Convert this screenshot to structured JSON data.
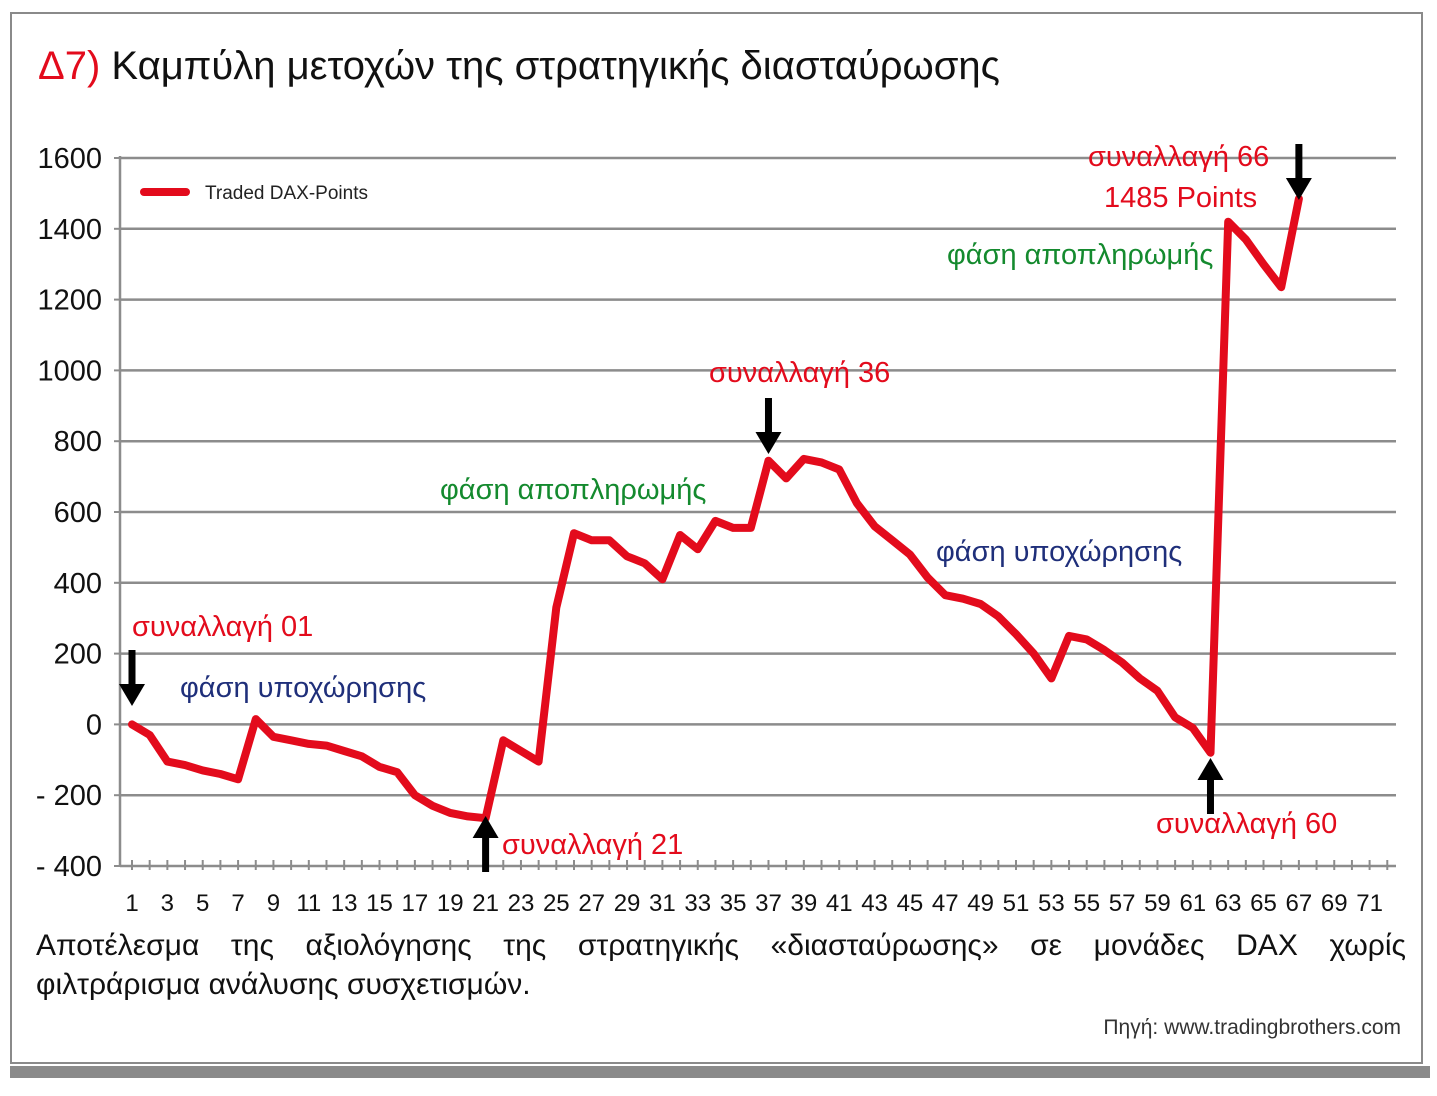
{
  "title": {
    "number": "Δ7)",
    "text": "Καμπύλη μετοχών της στρατηγικής διασταύρωσης"
  },
  "colors": {
    "series": "#e30b1c",
    "green": "#148a2e",
    "blue": "#1f2f7a",
    "grid": "#8c8c8c",
    "frame": "#8a8a8a"
  },
  "chart_data": {
    "type": "line",
    "grid": true,
    "legend_position": "top-left",
    "ylim": [
      -400,
      1600
    ],
    "yticks": [
      1600,
      1400,
      1200,
      1000,
      800,
      600,
      400,
      200,
      0,
      -200,
      -400
    ],
    "ytick_labels": [
      "1600",
      "1400",
      "1200",
      "1000",
      "800",
      "600",
      "400",
      "200",
      "0",
      "- 200",
      "- 400"
    ],
    "xlim": [
      1,
      72
    ],
    "xticks": [
      1,
      3,
      5,
      7,
      9,
      11,
      13,
      15,
      17,
      19,
      21,
      23,
      25,
      27,
      29,
      31,
      33,
      35,
      37,
      39,
      41,
      43,
      45,
      47,
      49,
      51,
      53,
      55,
      57,
      59,
      61,
      63,
      65,
      67,
      69,
      71
    ],
    "series": [
      {
        "name": "Traded DAX-Points",
        "x": [
          1,
          2,
          3,
          4,
          5,
          6,
          7,
          8,
          9,
          10,
          11,
          12,
          13,
          14,
          15,
          16,
          17,
          18,
          19,
          20,
          21,
          22,
          23,
          24,
          25,
          26,
          27,
          28,
          29,
          30,
          31,
          32,
          33,
          34,
          35,
          36,
          37,
          38,
          39,
          40,
          41,
          42,
          43,
          44,
          45,
          46,
          47,
          48,
          49,
          50,
          51,
          52,
          53,
          54,
          55,
          56,
          57,
          58,
          59,
          60,
          61,
          62,
          63,
          64,
          65,
          66,
          67
        ],
        "y": [
          0,
          -30,
          -105,
          -115,
          -130,
          -140,
          -155,
          15,
          -35,
          -45,
          -55,
          -60,
          -75,
          -90,
          -120,
          -135,
          -200,
          -230,
          -250,
          -260,
          -265,
          -45,
          -75,
          -105,
          330,
          540,
          520,
          520,
          475,
          455,
          410,
          535,
          495,
          575,
          555,
          555,
          745,
          695,
          750,
          740,
          720,
          625,
          560,
          520,
          480,
          415,
          365,
          355,
          340,
          305,
          255,
          200,
          130,
          250,
          240,
          210,
          175,
          130,
          95,
          20,
          -10,
          -80,
          1420,
          1370,
          1300,
          1235,
          1485
        ]
      }
    ],
    "annotations": [
      {
        "text": "συναλλαγή 01",
        "color": "red"
      },
      {
        "text": "φάση υποχώρησης",
        "color": "blue"
      },
      {
        "text": "συναλλαγή 21",
        "color": "red"
      },
      {
        "text": "φάση αποπληρωμής",
        "color": "green"
      },
      {
        "text": "συναλλαγή 36",
        "color": "red"
      },
      {
        "text": "φάση υποχώρησης",
        "color": "blue"
      },
      {
        "text": "συναλλαγή 60",
        "color": "red"
      },
      {
        "text": "φάση αποπληρωμής",
        "color": "green"
      },
      {
        "text": "συναλλαγή 66",
        "color": "red"
      },
      {
        "text": "1485 Points",
        "color": "red"
      }
    ]
  },
  "caption": {
    "line1": "Αποτέλεσμα της αξιολόγησης της στρατηγικής «διασταύρωσης» σε μονάδες DAX χωρίς",
    "line2": "φιλτράρισμα ανάλυσης συσχετισμών."
  },
  "source": "Πηγή: www.tradingbrothers.com"
}
